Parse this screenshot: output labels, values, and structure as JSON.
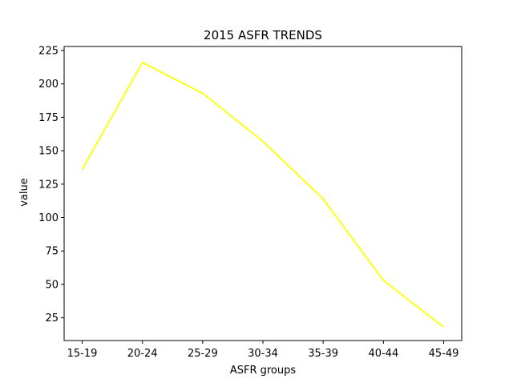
{
  "chart_data": {
    "type": "line",
    "title": "2015 ASFR TRENDS",
    "xlabel": "ASFR groups",
    "ylabel": "value",
    "categories": [
      "15-19",
      "20-24",
      "25-29",
      "30-34",
      "35-39",
      "40-44",
      "45-49"
    ],
    "series": [
      {
        "values": [
          136,
          216,
          193,
          157,
          114,
          53,
          18
        ],
        "color": "#ffff00"
      }
    ],
    "yticks": [
      25,
      50,
      75,
      100,
      125,
      150,
      175,
      200,
      225
    ],
    "ylim": [
      8,
      228
    ],
    "grid": false,
    "legend": "none"
  }
}
